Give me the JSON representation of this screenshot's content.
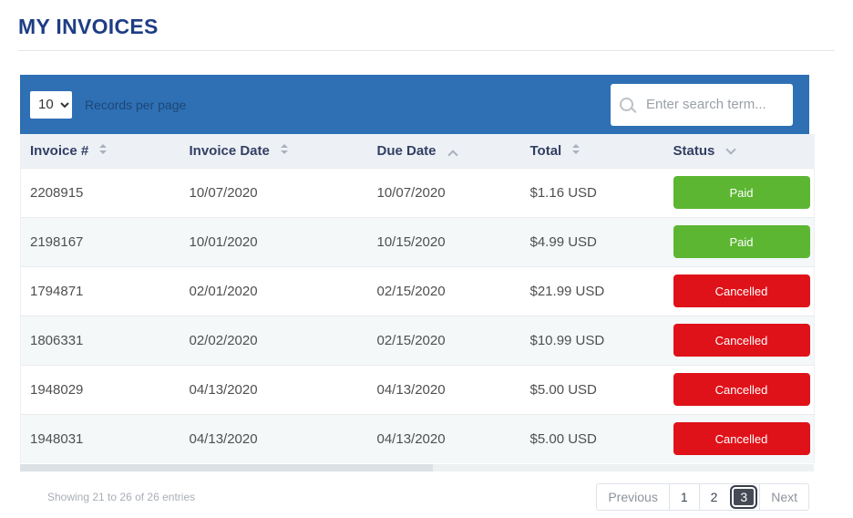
{
  "page": {
    "title": "MY INVOICES"
  },
  "colors": {
    "bar_blue": "#2f70b4",
    "title_navy": "#1e3d85",
    "header_bg": "#edf1f6",
    "header_text": "#333f63",
    "row_stripe": "#f4f8f9",
    "paid_green": "#5cb632",
    "cancelled_red": "#e01219",
    "active_page_bg": "#454b55"
  },
  "controls": {
    "records_per_page_value": "10",
    "records_per_page_label": "Records per page",
    "search_placeholder": "Enter search term..."
  },
  "table": {
    "columns": [
      {
        "label": "Invoice #",
        "sort": "both"
      },
      {
        "label": "Invoice Date",
        "sort": "both"
      },
      {
        "label": "Due Date",
        "sort": "asc"
      },
      {
        "label": "Total",
        "sort": "both"
      },
      {
        "label": "Status",
        "sort": "desc"
      }
    ],
    "rows": [
      {
        "invoice": "2208915",
        "invoice_date": "10/07/2020",
        "due_date": "10/07/2020",
        "total": "$1.16 USD",
        "status": "Paid",
        "status_type": "paid"
      },
      {
        "invoice": "2198167",
        "invoice_date": "10/01/2020",
        "due_date": "10/15/2020",
        "total": "$4.99 USD",
        "status": "Paid",
        "status_type": "paid"
      },
      {
        "invoice": "1794871",
        "invoice_date": "02/01/2020",
        "due_date": "02/15/2020",
        "total": "$21.99 USD",
        "status": "Cancelled",
        "status_type": "cancelled"
      },
      {
        "invoice": "1806331",
        "invoice_date": "02/02/2020",
        "due_date": "02/15/2020",
        "total": "$10.99 USD",
        "status": "Cancelled",
        "status_type": "cancelled"
      },
      {
        "invoice": "1948029",
        "invoice_date": "04/13/2020",
        "due_date": "04/13/2020",
        "total": "$5.00 USD",
        "status": "Cancelled",
        "status_type": "cancelled"
      },
      {
        "invoice": "1948031",
        "invoice_date": "04/13/2020",
        "due_date": "04/13/2020",
        "total": "$5.00 USD",
        "status": "Cancelled",
        "status_type": "cancelled"
      }
    ]
  },
  "footer": {
    "showing_text": "Showing 21 to 26 of 26 entries",
    "pagination": {
      "previous": "Previous",
      "pages": [
        "1",
        "2",
        "3"
      ],
      "active_page": "3",
      "next": "Next"
    }
  }
}
